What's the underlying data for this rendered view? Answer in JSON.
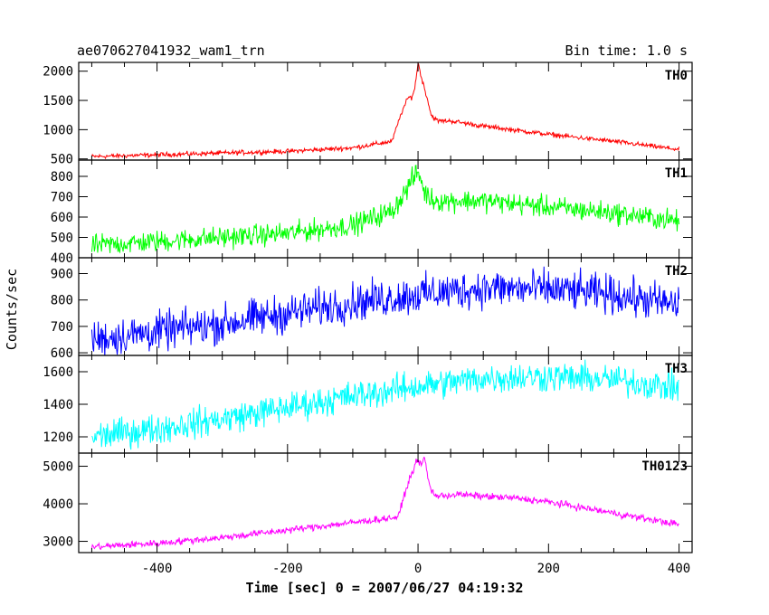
{
  "header": {
    "title": "ae070627041932_wam1_trn",
    "bin_time": "Bin time: 1.0 s"
  },
  "axes": {
    "xlabel": "Time [sec] 0 = 2007/06/27 04:19:32",
    "ylabel": "Counts/sec"
  },
  "chart_data": {
    "type": "line",
    "title": "ae070627041932_wam1_trn",
    "xlabel": "Time [sec] 0 = 2007/06/27 04:19:32",
    "ylabel": "Counts/sec",
    "xlim": [
      -520,
      420
    ],
    "xticks": [
      -400,
      -200,
      0,
      200,
      400
    ],
    "x_sample_step": 10,
    "x_start": -500,
    "x_end": 400,
    "grid": false,
    "legend": "none",
    "panels": [
      {
        "name": "TH0",
        "color": "#ff0000",
        "ylim": [
          480,
          2150
        ],
        "yticks": [
          500,
          1000,
          1500,
          2000
        ],
        "x": [
          -500,
          -400,
          -300,
          -200,
          -100,
          -40,
          -25,
          -15,
          -10,
          -5,
          0,
          5,
          10,
          15,
          20,
          30,
          50,
          100,
          200,
          300,
          400
        ],
        "values": [
          540,
          570,
          600,
          630,
          690,
          800,
          1300,
          1550,
          1550,
          1700,
          2150,
          1900,
          1700,
          1500,
          1250,
          1150,
          1150,
          1060,
          920,
          800,
          660
        ],
        "noise": 30
      },
      {
        "name": "TH1",
        "color": "#00ff00",
        "ylim": [
          400,
          880
        ],
        "yticks": [
          400,
          500,
          600,
          700,
          800
        ],
        "x": [
          -500,
          -400,
          -300,
          -200,
          -100,
          -40,
          -20,
          -10,
          0,
          5,
          10,
          20,
          30,
          50,
          100,
          200,
          300,
          400
        ],
        "values": [
          460,
          480,
          500,
          520,
          560,
          630,
          720,
          780,
          820,
          780,
          720,
          690,
          680,
          680,
          680,
          650,
          620,
          580
        ],
        "noise": 40
      },
      {
        "name": "TH2",
        "color": "#0000ff",
        "ylim": [
          590,
          960
        ],
        "yticks": [
          600,
          700,
          800,
          900
        ],
        "x": [
          -500,
          -400,
          -300,
          -200,
          -100,
          0,
          100,
          200,
          300,
          400
        ],
        "values": [
          650,
          680,
          710,
          750,
          790,
          820,
          845,
          840,
          820,
          780
        ],
        "noise": 55
      },
      {
        "name": "TH3",
        "color": "#00ffff",
        "ylim": [
          1100,
          1700
        ],
        "yticks": [
          1200,
          1400,
          1600
        ],
        "x": [
          -500,
          -400,
          -300,
          -200,
          -100,
          0,
          100,
          200,
          300,
          400
        ],
        "values": [
          1200,
          1250,
          1310,
          1380,
          1450,
          1510,
          1560,
          1570,
          1550,
          1500
        ],
        "noise": 70
      },
      {
        "name": "TH0123",
        "color": "#ff00ff",
        "ylim": [
          2700,
          5350
        ],
        "yticks": [
          3000,
          4000,
          5000
        ],
        "x": [
          -500,
          -400,
          -300,
          -200,
          -100,
          -30,
          -20,
          -10,
          0,
          5,
          10,
          15,
          20,
          30,
          60,
          100,
          150,
          200,
          300,
          400
        ],
        "values": [
          2850,
          2950,
          3100,
          3300,
          3500,
          3650,
          4300,
          4800,
          5200,
          5000,
          5250,
          4700,
          4350,
          4200,
          4250,
          4200,
          4150,
          4050,
          3750,
          3450
        ],
        "noise": 70
      }
    ]
  }
}
